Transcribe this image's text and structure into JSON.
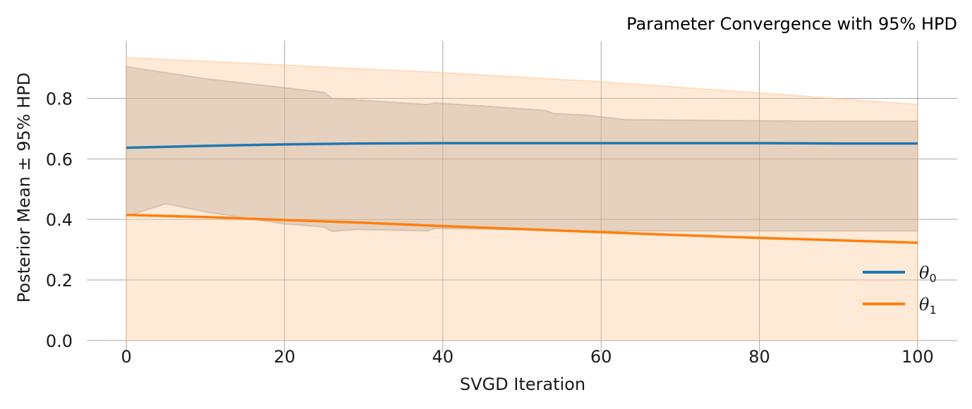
{
  "chart_data": {
    "type": "line",
    "title": "Parameter Convergence with 95% HPD",
    "xlabel": "SVGD Iteration",
    "ylabel": "Posterior Mean ± 95% HPD",
    "xlim": [
      -5,
      105
    ],
    "ylim": [
      -0.04,
      0.99
    ],
    "xticks": [
      0,
      20,
      40,
      60,
      80,
      100
    ],
    "xtick_labels": [
      "0",
      "20",
      "40",
      "60",
      "80",
      "100"
    ],
    "yticks": [
      0.0,
      0.2,
      0.4,
      0.6,
      0.8
    ],
    "ytick_labels": [
      "0.0",
      "0.2",
      "0.4",
      "0.6",
      "0.8"
    ],
    "grid": true,
    "legend_position": "bottom-right",
    "series": [
      {
        "name": "theta0",
        "legend_symbol": "θ",
        "legend_subscript": "0",
        "color": "#1f77b4",
        "band_color": "#a0a0a0",
        "x": [
          0,
          10,
          20,
          30,
          40,
          50,
          60,
          70,
          80,
          90,
          100
        ],
        "mean": [
          0.637,
          0.643,
          0.648,
          0.651,
          0.652,
          0.652,
          0.652,
          0.652,
          0.652,
          0.651,
          0.651
        ],
        "hpd_x": [
          0,
          5,
          10,
          20,
          25,
          26,
          29,
          38,
          39,
          45,
          53,
          54,
          58,
          63,
          70,
          80,
          90,
          100
        ],
        "hpd_upper": [
          0.905,
          0.885,
          0.865,
          0.835,
          0.82,
          0.8,
          0.795,
          0.78,
          0.785,
          0.775,
          0.76,
          0.75,
          0.745,
          0.73,
          0.728,
          0.726,
          0.725,
          0.725
        ],
        "hpd_lower": [
          0.41,
          0.452,
          0.425,
          0.385,
          0.375,
          0.36,
          0.367,
          0.362,
          0.37,
          0.368,
          0.365,
          0.362,
          0.362,
          0.362,
          0.362,
          0.362,
          0.362,
          0.362
        ]
      },
      {
        "name": "theta1",
        "legend_symbol": "θ",
        "legend_subscript": "1",
        "color": "#ff7f0e",
        "band_color": "#ffc796",
        "x": [
          0,
          10,
          20,
          30,
          40,
          50,
          60,
          70,
          80,
          90,
          100
        ],
        "mean": [
          0.415,
          0.408,
          0.398,
          0.389,
          0.378,
          0.368,
          0.358,
          0.348,
          0.339,
          0.331,
          0.323
        ],
        "hpd_x": [
          0,
          20,
          40,
          60,
          80,
          100
        ],
        "hpd_upper": [
          0.935,
          0.91,
          0.885,
          0.855,
          0.818,
          0.78
        ],
        "hpd_lower": [
          0.0,
          0.0,
          0.0,
          0.0,
          0.0,
          0.0
        ]
      }
    ]
  }
}
